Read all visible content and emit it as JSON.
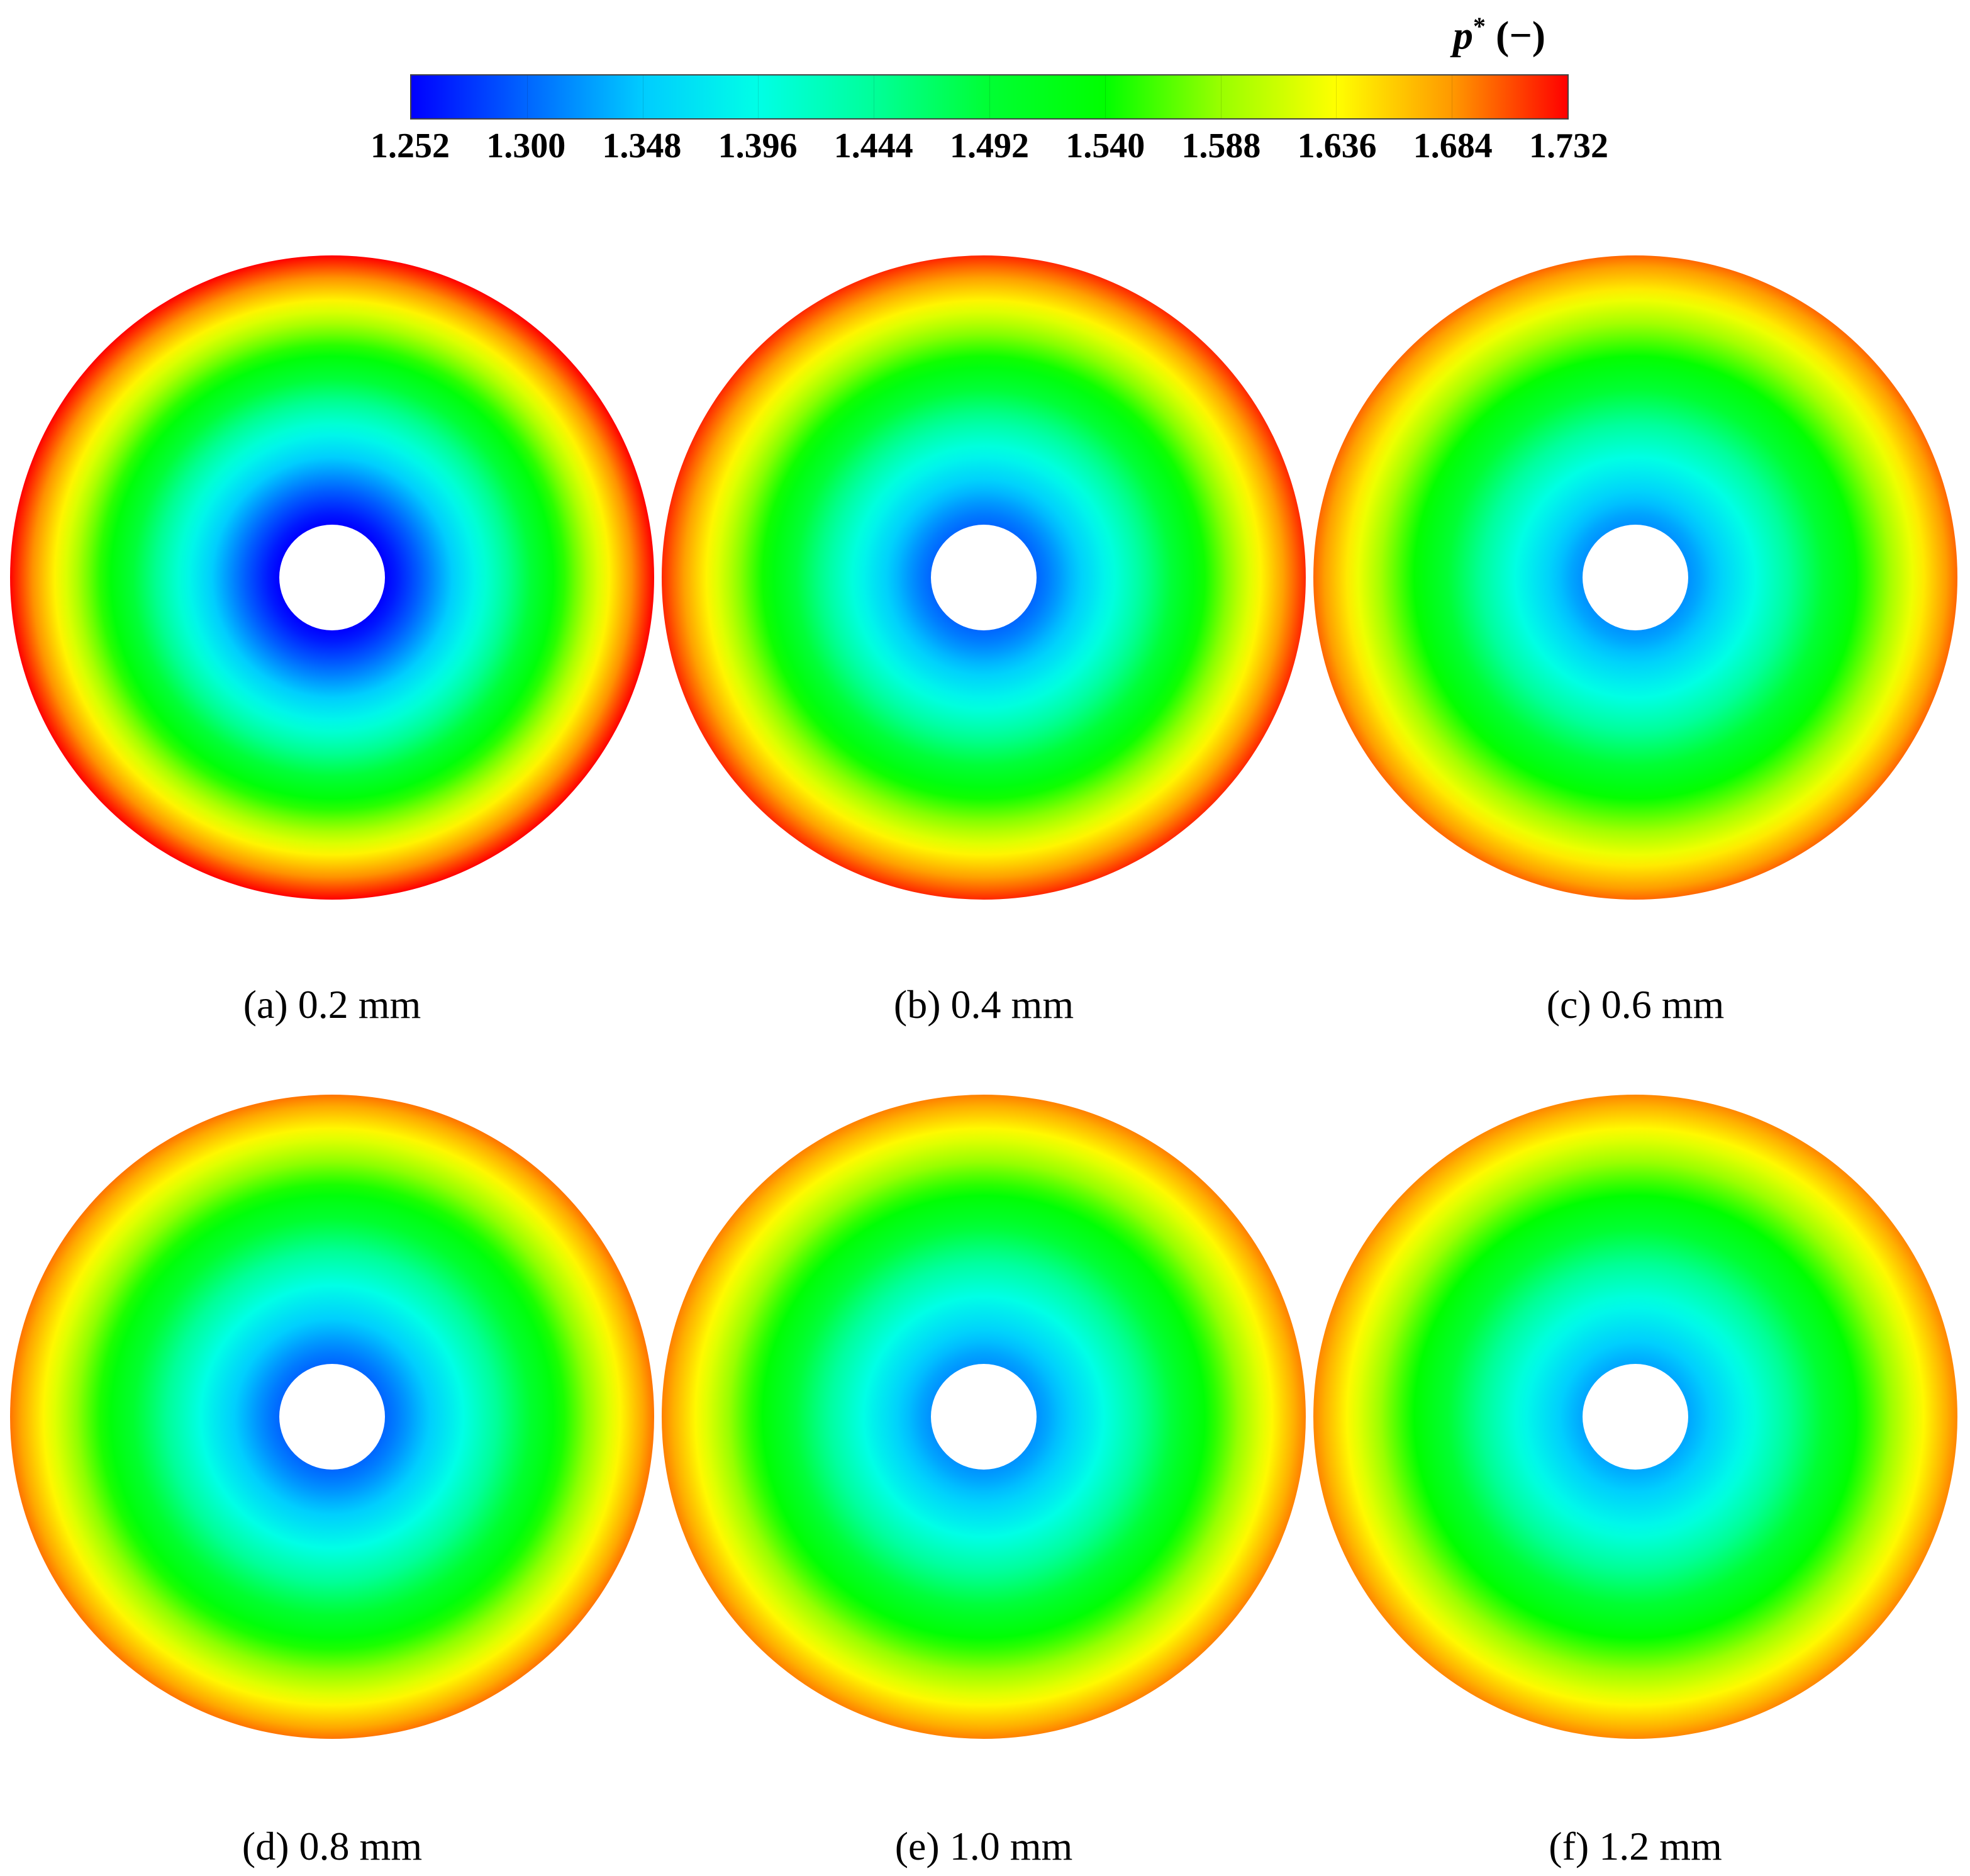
{
  "chart_data": {
    "type": "contour",
    "colorbar": {
      "label_var": "p",
      "label_sup": "*",
      "label_unit": "(−)",
      "ticks": [
        "1.252",
        "1.300",
        "1.348",
        "1.396",
        "1.444",
        "1.492",
        "1.540",
        "1.588",
        "1.636",
        "1.684",
        "1.732"
      ],
      "range": [
        1.252,
        1.732
      ],
      "colors": [
        "#0000ff",
        "#0066ff",
        "#00ccff",
        "#00ffe6",
        "#00ff99",
        "#00ff33",
        "#00ff00",
        "#99ff00",
        "#ffff00",
        "#ff9900",
        "#ff0000"
      ]
    },
    "panels": [
      {
        "caption": "(a) 0.2 mm",
        "center_value": 1.252,
        "outer_value": 1.732
      },
      {
        "caption": "(b) 0.4 mm",
        "center_value": 1.3,
        "outer_value": 1.72
      },
      {
        "caption": "(c) 0.6 mm",
        "center_value": 1.32,
        "outer_value": 1.7
      },
      {
        "caption": "(d) 0.8 mm",
        "center_value": 1.3,
        "outer_value": 1.696
      },
      {
        "caption": "(e) 1.0 mm",
        "center_value": 1.32,
        "outer_value": 1.692
      },
      {
        "caption": "(f) 1.2 mm",
        "center_value": 1.33,
        "outer_value": 1.69
      }
    ]
  }
}
